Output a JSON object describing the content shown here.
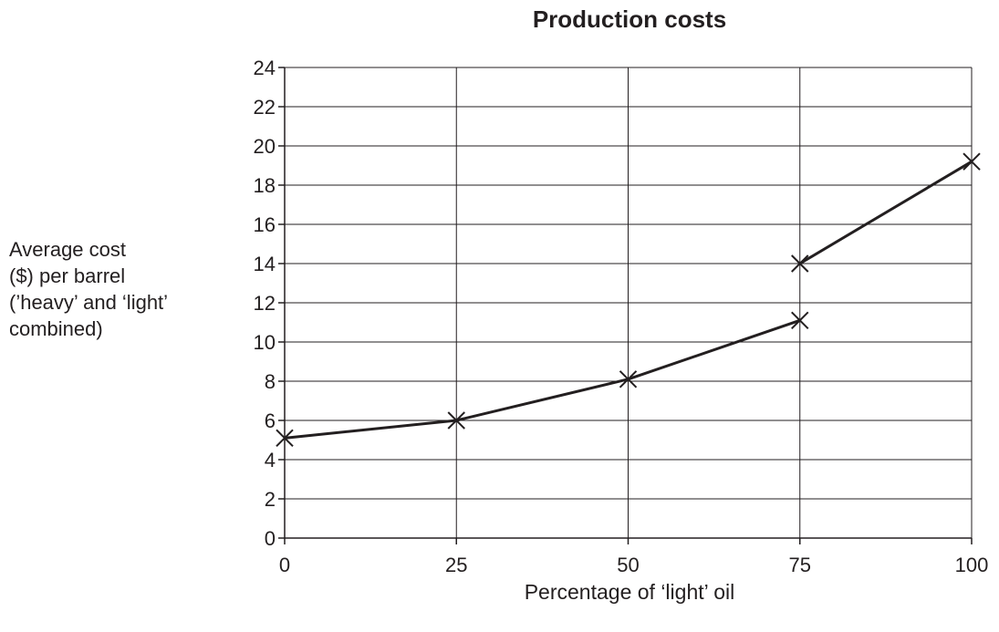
{
  "chart_data": {
    "type": "line",
    "title": "Production costs",
    "xlabel": "Percentage of ‘light’ oil",
    "ylabel_lines": [
      "Average cost",
      "($) per barrel",
      "(’heavy’ and ‘light’",
      "combined)"
    ],
    "x_ticks": [
      0,
      25,
      50,
      75,
      100
    ],
    "y_ticks": [
      0,
      2,
      4,
      6,
      8,
      10,
      12,
      14,
      16,
      18,
      20,
      22,
      24
    ],
    "xlim": [
      0,
      100
    ],
    "ylim": [
      0,
      24
    ],
    "grid": true,
    "marker": "x",
    "series": [
      {
        "x": [
          0,
          25,
          50,
          75
        ],
        "y": [
          5.1,
          6.0,
          8.1,
          11.1
        ]
      },
      {
        "x": [
          75,
          100
        ],
        "y": [
          14.0,
          19.2
        ]
      }
    ]
  }
}
